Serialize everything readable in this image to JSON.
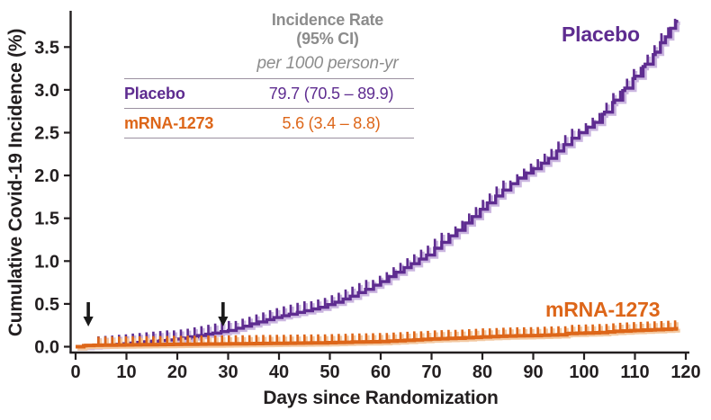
{
  "colors": {
    "placebo": "#5E2C90",
    "placebo_halo": "#CBB6E0",
    "mrna": "#DD6619",
    "mrna_halo": "#F3C9A2",
    "axis_black": "#231f20",
    "table_gray": "#8C8C8C",
    "table_border": "#9b90a0",
    "arrow_black": "#1a1a1a"
  },
  "chart_data": {
    "type": "line",
    "step": true,
    "title": "",
    "xlabel": "Days since Randomization",
    "ylabel": "Cumulative Covid-19 Incidence (%)",
    "xlim": [
      0,
      120
    ],
    "ylim": [
      0,
      3.9
    ],
    "xticks": [
      0,
      10,
      20,
      30,
      40,
      50,
      60,
      70,
      80,
      90,
      100,
      110,
      120
    ],
    "yticks": [
      0.0,
      0.5,
      1.0,
      1.5,
      2.0,
      2.5,
      3.0,
      3.5
    ],
    "grid": false,
    "legend_position": "curve-end-labels",
    "series": [
      {
        "name": "Placebo",
        "color": "#5E2C90",
        "halo": "#CBB6E0",
        "points": [
          [
            0,
            0
          ],
          [
            3,
            0.01
          ],
          [
            6,
            0.02
          ],
          [
            9,
            0.035
          ],
          [
            12,
            0.05
          ],
          [
            15,
            0.065
          ],
          [
            18,
            0.08
          ],
          [
            21,
            0.1
          ],
          [
            24,
            0.13
          ],
          [
            27,
            0.16
          ],
          [
            30,
            0.19
          ],
          [
            33,
            0.24
          ],
          [
            36,
            0.29
          ],
          [
            39,
            0.34
          ],
          [
            42,
            0.38
          ],
          [
            45,
            0.42
          ],
          [
            48,
            0.46
          ],
          [
            51,
            0.52
          ],
          [
            54,
            0.59
          ],
          [
            57,
            0.67
          ],
          [
            60,
            0.76
          ],
          [
            63,
            0.87
          ],
          [
            66,
            0.97
          ],
          [
            69,
            1.07
          ],
          [
            72,
            1.22
          ],
          [
            75,
            1.36
          ],
          [
            78,
            1.52
          ],
          [
            81,
            1.68
          ],
          [
            84,
            1.83
          ],
          [
            87,
            1.97
          ],
          [
            90,
            2.08
          ],
          [
            93,
            2.2
          ],
          [
            96,
            2.36
          ],
          [
            99,
            2.5
          ],
          [
            102,
            2.62
          ],
          [
            104,
            2.74
          ],
          [
            106,
            2.88
          ],
          [
            108,
            3.02
          ],
          [
            110,
            3.16
          ],
          [
            112,
            3.3
          ],
          [
            114,
            3.44
          ],
          [
            115,
            3.55
          ],
          [
            116,
            3.62
          ],
          [
            117,
            3.72
          ],
          [
            118,
            3.8
          ],
          [
            118.5,
            3.8
          ]
        ]
      },
      {
        "name": "mRNA-1273",
        "color": "#DD6619",
        "halo": "#F3C9A2",
        "points": [
          [
            0,
            0
          ],
          [
            2,
            0.015
          ],
          [
            8,
            0.02
          ],
          [
            16,
            0.025
          ],
          [
            24,
            0.03
          ],
          [
            32,
            0.035
          ],
          [
            40,
            0.04
          ],
          [
            48,
            0.045
          ],
          [
            55,
            0.055
          ],
          [
            60,
            0.06
          ],
          [
            65,
            0.075
          ],
          [
            70,
            0.09
          ],
          [
            75,
            0.1
          ],
          [
            80,
            0.115
          ],
          [
            85,
            0.125
          ],
          [
            90,
            0.13
          ],
          [
            95,
            0.14
          ],
          [
            97,
            0.155
          ],
          [
            103,
            0.165
          ],
          [
            106,
            0.18
          ],
          [
            110,
            0.19
          ],
          [
            114,
            0.2
          ],
          [
            118,
            0.21
          ],
          [
            118.5,
            0.21
          ]
        ]
      }
    ],
    "annotations": {
      "arrow_days": [
        2.5,
        29
      ],
      "arrow_meaning": "vaccination-dose-markers"
    },
    "inset_table": {
      "header_line1": "Incidence Rate",
      "header_line2": "(95% CI)",
      "subheader": "per 1000 person-yr",
      "rows": [
        {
          "label": "Placebo",
          "value": "79.7 (70.5 – 89.9)"
        },
        {
          "label": "mRNA-1273",
          "value": "5.6 (3.4 – 8.8)"
        }
      ]
    }
  }
}
